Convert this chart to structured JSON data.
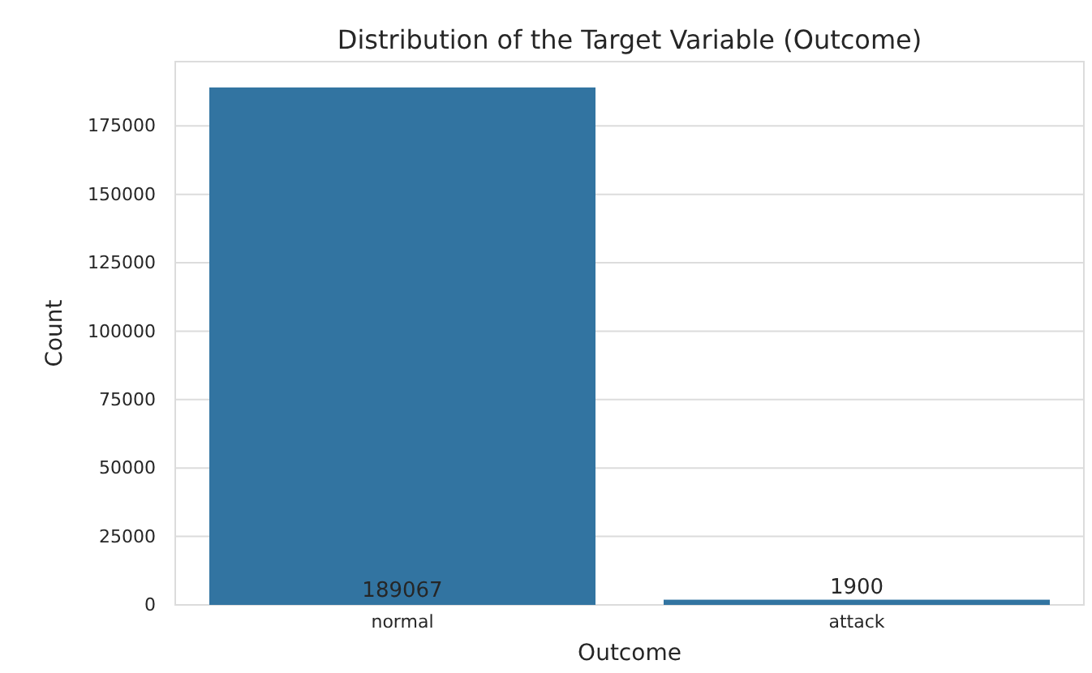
{
  "chart_data": {
    "type": "bar",
    "title": "Distribution of the Target Variable (Outcome)",
    "xlabel": "Outcome",
    "ylabel": "Count",
    "categories": [
      "normal",
      "attack"
    ],
    "values": [
      189067,
      1900
    ],
    "value_labels": [
      "189067",
      "1900"
    ],
    "color": "#3274a1",
    "ylim": [
      0,
      198500
    ],
    "yticks": [
      0,
      25000,
      50000,
      75000,
      100000,
      125000,
      150000,
      175000
    ],
    "grid": "y"
  }
}
